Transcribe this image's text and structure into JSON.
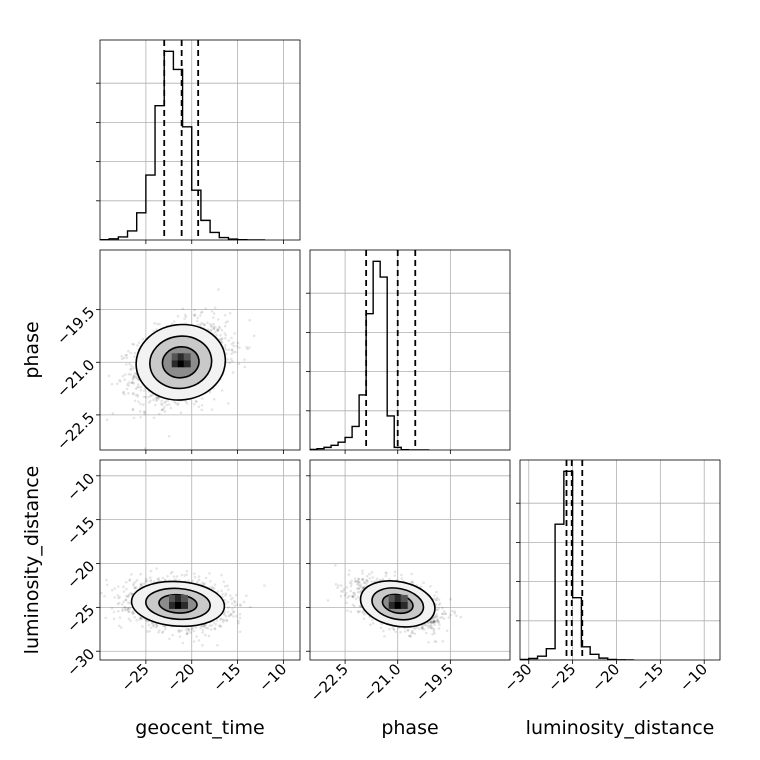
{
  "chart_data": {
    "type": "corner",
    "parameters": [
      "geocent_time",
      "phase",
      "luminosity_distance"
    ],
    "axes": {
      "geocent_time": {
        "range": [
          -30,
          -8.2
        ],
        "ticks": [
          -25,
          -20,
          -15,
          -10
        ],
        "tick_labels": [
          "−25",
          "−20",
          "−15",
          "−10"
        ]
      },
      "phase": {
        "range": [
          -23.5,
          -17.8
        ],
        "ticks": [
          -22.5,
          -21.0,
          -19.5
        ],
        "tick_labels": [
          "−22.5",
          "−21.0",
          "−19.5"
        ]
      },
      "luminosity_distance": {
        "range": [
          -31,
          -8.2
        ],
        "ticks": [
          -30,
          -25,
          -20,
          -15,
          -10
        ],
        "tick_labels": [
          "−30",
          "−25",
          "−20",
          "−15",
          "−10"
        ]
      }
    },
    "histograms": {
      "geocent_time": {
        "bin_edges": [
          -30,
          -29,
          -28,
          -27,
          -26,
          -25,
          -24,
          -23,
          -22,
          -21,
          -20,
          -19,
          -18,
          -17,
          -16,
          -15,
          -14,
          -13,
          -12
        ],
        "counts": [
          1,
          4,
          10,
          30,
          90,
          215,
          445,
          625,
          565,
          375,
          165,
          65,
          25,
          8,
          3,
          1,
          0,
          0
        ],
        "quantiles": [
          -23.0,
          -21.1,
          -19.3
        ]
      },
      "phase": {
        "bin_edges": [
          -23.5,
          -23.3,
          -23.1,
          -22.9,
          -22.7,
          -22.5,
          -22.3,
          -22.1,
          -21.9,
          -21.7,
          -21.5,
          -21.3,
          -21.1,
          -20.9,
          -20.7,
          -20.5,
          -20.3,
          -20.1
        ],
        "counts": [
          2,
          5,
          10,
          18,
          30,
          48,
          90,
          210,
          520,
          720,
          660,
          130,
          10,
          1,
          0,
          0,
          0
        ],
        "quantiles": [
          -21.9,
          -21.0,
          -20.5
        ]
      },
      "luminosity_distance": {
        "bin_edges": [
          -31,
          -30,
          -29,
          -28,
          -27,
          -26,
          -25,
          -24,
          -23,
          -22,
          -21,
          -20,
          -19,
          -18
        ],
        "counts": [
          3,
          8,
          20,
          60,
          720,
          1000,
          330,
          70,
          30,
          10,
          3,
          1,
          0
        ],
        "quantiles": [
          -25.7,
          -25.1,
          -23.9
        ]
      }
    },
    "scatter_2d": [
      {
        "x": "geocent_time",
        "y": "phase",
        "center": [
          -21.2,
          -21.0
        ],
        "sigma": [
          2.5,
          0.55
        ],
        "correlation": 0.3
      },
      {
        "x": "geocent_time",
        "y": "luminosity_distance",
        "center": [
          -21.5,
          -24.6
        ],
        "sigma": [
          2.6,
          1.3
        ],
        "correlation": -0.15
      },
      {
        "x": "phase",
        "y": "luminosity_distance",
        "center": [
          -21.0,
          -24.6
        ],
        "sigma": [
          0.55,
          1.3
        ],
        "correlation": -0.45
      }
    ],
    "grid": true,
    "xlabel_bottom": [
      "geocent_time",
      "phase",
      "luminosity_distance"
    ],
    "ylabel_left": [
      "phase",
      "luminosity_distance"
    ]
  }
}
